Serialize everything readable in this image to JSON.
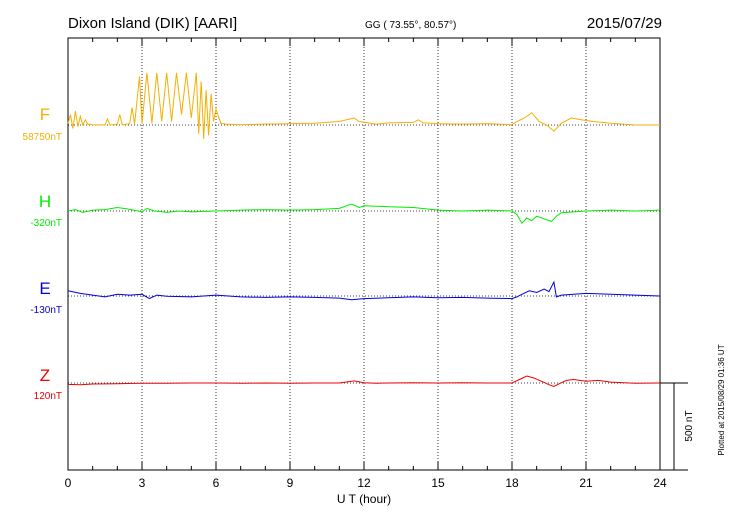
{
  "header": {
    "station": "Dixon Island (DIK)  [AARI]",
    "coords": "GG ( 73.55°,  80.57°)",
    "date": "2015/07/29"
  },
  "footer_note": "Plotted at 2015/08/29 01:36 UT",
  "scale_bar_label": "500 nT",
  "chart_data": {
    "type": "line",
    "xlabel": "U T (hour)",
    "xlim": [
      0,
      24
    ],
    "x_ticks": [
      "0",
      "3",
      "6",
      "9",
      "12",
      "15",
      "18",
      "21",
      "24"
    ],
    "grid": "dotted vertical every 3 h; dotted baseline per trace",
    "scale_bar_nT": 500,
    "series": [
      {
        "name": "F",
        "baseline_label": "58750nT",
        "color": "#f5b000",
        "points": [
          [
            0,
            10
          ],
          [
            0.1,
            60
          ],
          [
            0.2,
            -20
          ],
          [
            0.3,
            80
          ],
          [
            0.4,
            -10
          ],
          [
            0.5,
            50
          ],
          [
            0.6,
            0
          ],
          [
            0.7,
            30
          ],
          [
            0.8,
            5
          ],
          [
            1,
            2
          ],
          [
            1.5,
            0
          ],
          [
            1.6,
            35
          ],
          [
            1.7,
            0
          ],
          [
            2,
            5
          ],
          [
            2.1,
            60
          ],
          [
            2.2,
            0
          ],
          [
            2.5,
            8
          ],
          [
            2.6,
            100
          ],
          [
            2.7,
            5
          ],
          [
            2.9,
            280
          ],
          [
            3.0,
            5
          ],
          [
            3.2,
            300
          ],
          [
            3.4,
            10
          ],
          [
            3.6,
            300
          ],
          [
            3.8,
            20
          ],
          [
            4.0,
            300
          ],
          [
            4.2,
            20
          ],
          [
            4.4,
            300
          ],
          [
            4.6,
            60
          ],
          [
            4.8,
            300
          ],
          [
            5.0,
            40
          ],
          [
            5.2,
            300
          ],
          [
            5.3,
            -50
          ],
          [
            5.4,
            250
          ],
          [
            5.5,
            -80
          ],
          [
            5.6,
            200
          ],
          [
            5.7,
            -60
          ],
          [
            5.8,
            180
          ],
          [
            5.9,
            20
          ],
          [
            6.0,
            90
          ],
          [
            6.2,
            10
          ],
          [
            6.4,
            5
          ],
          [
            7,
            2
          ],
          [
            8,
            5
          ],
          [
            9,
            8
          ],
          [
            10,
            10
          ],
          [
            11,
            20
          ],
          [
            11.6,
            40
          ],
          [
            11.8,
            20
          ],
          [
            12.5,
            5
          ],
          [
            13,
            12
          ],
          [
            14,
            15
          ],
          [
            14.2,
            30
          ],
          [
            14.4,
            12
          ],
          [
            15,
            8
          ],
          [
            16,
            5
          ],
          [
            17,
            8
          ],
          [
            18,
            2
          ],
          [
            18.2,
            20
          ],
          [
            18.5,
            40
          ],
          [
            18.8,
            70
          ],
          [
            19.1,
            20
          ],
          [
            19.4,
            0
          ],
          [
            19.7,
            -35
          ],
          [
            20,
            10
          ],
          [
            20.4,
            40
          ],
          [
            20.8,
            30
          ],
          [
            21.3,
            20
          ],
          [
            22,
            10
          ],
          [
            23,
            0
          ],
          [
            24,
            0
          ]
        ]
      },
      {
        "name": "H",
        "baseline_label": "-320nT",
        "color": "#00ee00",
        "points": [
          [
            0,
            0
          ],
          [
            0.3,
            8
          ],
          [
            0.6,
            -8
          ],
          [
            1,
            5
          ],
          [
            1.5,
            8
          ],
          [
            2,
            20
          ],
          [
            2.4,
            12
          ],
          [
            3,
            -5
          ],
          [
            3.2,
            15
          ],
          [
            3.5,
            0
          ],
          [
            4,
            -8
          ],
          [
            4.5,
            0
          ],
          [
            5,
            -5
          ],
          [
            6,
            0
          ],
          [
            7,
            5
          ],
          [
            8,
            8
          ],
          [
            9,
            5
          ],
          [
            10,
            8
          ],
          [
            11,
            15
          ],
          [
            11.5,
            40
          ],
          [
            11.8,
            20
          ],
          [
            12,
            30
          ],
          [
            13,
            25
          ],
          [
            14,
            20
          ],
          [
            15,
            5
          ],
          [
            16,
            0
          ],
          [
            17,
            5
          ],
          [
            18,
            0
          ],
          [
            18.2,
            -20
          ],
          [
            18.4,
            -70
          ],
          [
            18.6,
            -40
          ],
          [
            18.8,
            -55
          ],
          [
            19,
            -30
          ],
          [
            19.3,
            -45
          ],
          [
            19.6,
            -60
          ],
          [
            19.8,
            -30
          ],
          [
            20,
            -10
          ],
          [
            21,
            0
          ],
          [
            22,
            5
          ],
          [
            23,
            0
          ],
          [
            24,
            5
          ]
        ]
      },
      {
        "name": "E",
        "baseline_label": "-130nT",
        "color": "#0000dd",
        "points": [
          [
            0,
            30
          ],
          [
            0.5,
            15
          ],
          [
            1,
            5
          ],
          [
            1.5,
            -5
          ],
          [
            2,
            10
          ],
          [
            2.5,
            5
          ],
          [
            3,
            10
          ],
          [
            3.3,
            -15
          ],
          [
            3.6,
            5
          ],
          [
            4,
            -2
          ],
          [
            5,
            -5
          ],
          [
            6,
            5
          ],
          [
            7,
            -5
          ],
          [
            8,
            -8
          ],
          [
            9,
            -5
          ],
          [
            10,
            -8
          ],
          [
            11,
            -12
          ],
          [
            11.5,
            -22
          ],
          [
            12,
            -15
          ],
          [
            13,
            -10
          ],
          [
            14,
            -5
          ],
          [
            15,
            -10
          ],
          [
            16,
            -8
          ],
          [
            17,
            -12
          ],
          [
            18,
            -15
          ],
          [
            18.2,
            -5
          ],
          [
            18.4,
            10
          ],
          [
            18.7,
            30
          ],
          [
            19,
            20
          ],
          [
            19.3,
            40
          ],
          [
            19.5,
            25
          ],
          [
            19.7,
            80
          ],
          [
            19.8,
            -5
          ],
          [
            20,
            5
          ],
          [
            20.5,
            10
          ],
          [
            21,
            15
          ],
          [
            22,
            10
          ],
          [
            23,
            5
          ],
          [
            24,
            0
          ]
        ]
      },
      {
        "name": "Z",
        "baseline_label": "120nT",
        "color": "#ee0000",
        "points": [
          [
            0,
            -8
          ],
          [
            0.5,
            -10
          ],
          [
            1,
            -6
          ],
          [
            2,
            -4
          ],
          [
            3,
            -2
          ],
          [
            4,
            -2
          ],
          [
            5,
            0
          ],
          [
            6,
            0
          ],
          [
            7,
            -2
          ],
          [
            8,
            0
          ],
          [
            9,
            -2
          ],
          [
            10,
            0
          ],
          [
            11,
            0
          ],
          [
            11.6,
            12
          ],
          [
            12,
            2
          ],
          [
            12.5,
            -2
          ],
          [
            13,
            0
          ],
          [
            14,
            2
          ],
          [
            15,
            0
          ],
          [
            16,
            2
          ],
          [
            17,
            0
          ],
          [
            18,
            0
          ],
          [
            18.3,
            20
          ],
          [
            18.6,
            40
          ],
          [
            18.9,
            28
          ],
          [
            19.2,
            10
          ],
          [
            19.5,
            -10
          ],
          [
            19.7,
            -20
          ],
          [
            19.9,
            -5
          ],
          [
            20.2,
            15
          ],
          [
            20.5,
            20
          ],
          [
            21,
            10
          ],
          [
            21.5,
            15
          ],
          [
            22,
            5
          ],
          [
            23,
            -2
          ],
          [
            24,
            0
          ]
        ]
      }
    ]
  }
}
